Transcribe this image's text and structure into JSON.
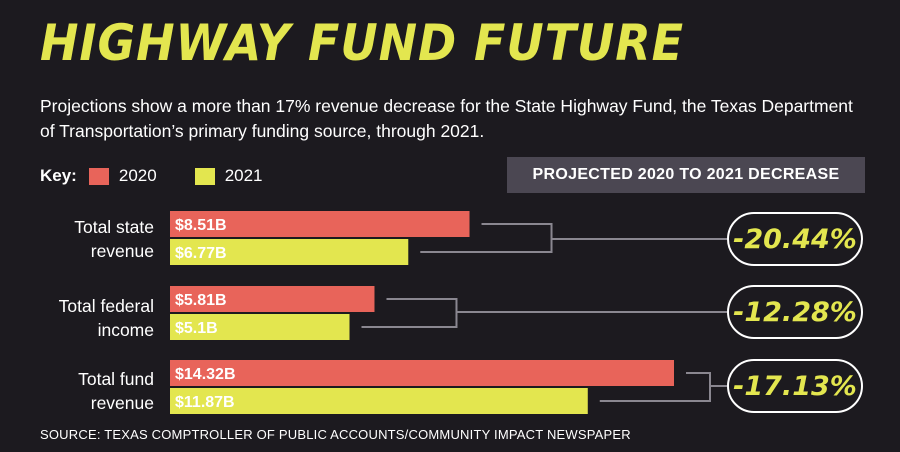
{
  "title": "HIGHWAY FUND FUTURE",
  "subtitle": "Projections show a more than 17% revenue decrease for the State Highway Fund, the Texas Department of Transportation’s primary funding source, through 2021.",
  "key": {
    "label": "Key:",
    "items": [
      {
        "label": "2020",
        "color": "#e8645a"
      },
      {
        "label": "2021",
        "color": "#e3e64f"
      }
    ]
  },
  "decrease_header": "PROJECTED 2020 TO 2021 DECREASE",
  "source": "SOURCE: TEXAS COMPTROLLER OF PUBLIC ACCOUNTS/COMMUNITY IMPACT NEWSPAPER",
  "colors": {
    "background": "#1c1a1f",
    "accent": "#e3e64f",
    "bar_2020": "#e8645a",
    "bar_2021": "#e3e64f",
    "header_box": "#4b4752"
  },
  "chart_data": {
    "type": "bar",
    "orientation": "horizontal",
    "unit": "billion USD",
    "categories": [
      {
        "line1": "Total state",
        "line2": "revenue"
      },
      {
        "line1": "Total federal",
        "line2": "income"
      },
      {
        "line1": "Total fund",
        "line2": "revenue"
      }
    ],
    "series": [
      {
        "name": "2020",
        "color": "#e8645a",
        "values": [
          8.51,
          5.81,
          14.32
        ],
        "labels": [
          "$8.51B",
          "$5.81B",
          "$14.32B"
        ]
      },
      {
        "name": "2021",
        "color": "#e3e64f",
        "values": [
          6.77,
          5.1,
          11.87
        ],
        "labels": [
          "$6.77B",
          "$5.1B",
          "$11.87B"
        ]
      }
    ],
    "decreases": [
      "-20.44%",
      "-12.28%",
      "-17.13%"
    ],
    "xlim": [
      0,
      14.32
    ],
    "grid": false,
    "legend": "top-left"
  }
}
